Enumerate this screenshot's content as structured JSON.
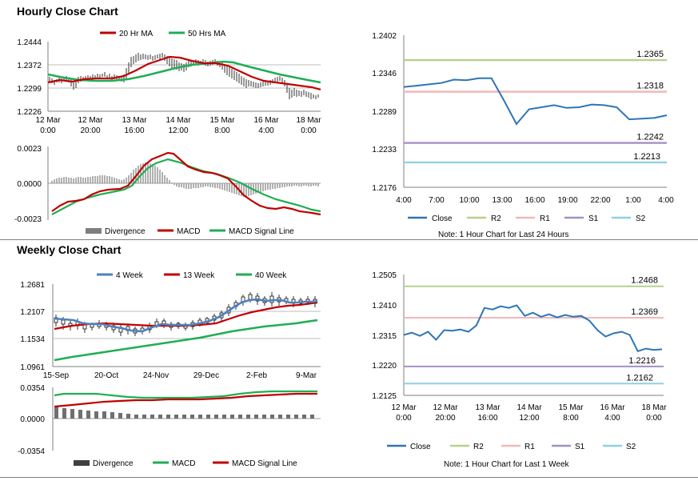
{
  "hourly": {
    "title": "Hourly Close Chart",
    "price_chart": {
      "legend": [
        "20 Hr MA",
        "50 Hrs MA"
      ],
      "y_ticks": [
        "1.2444",
        "1.2372",
        "1.2299",
        "1.2226"
      ],
      "x_ticks": [
        [
          "12 Mar",
          "0:00"
        ],
        [
          "12 Mar",
          "20:00"
        ],
        [
          "13 Mar",
          "16:00"
        ],
        [
          "14 Mar",
          "12:00"
        ],
        [
          "15 Mar",
          "8:00"
        ],
        [
          "16 Mar",
          "4:00"
        ],
        [
          "18 Mar",
          "0:00"
        ]
      ]
    },
    "macd_chart": {
      "y_ticks": [
        "0.0023",
        "0.0000",
        "-0.0023"
      ],
      "legend": [
        "Divergence",
        "MACD",
        "MACD Signal Line"
      ]
    },
    "levels_chart": {
      "chart_data": {
        "type": "line",
        "ylim": [
          1.2176,
          1.2402
        ],
        "y_ticks": [
          "1.2402",
          "1.2346",
          "1.2289",
          "1.2233",
          "1.2176"
        ],
        "x_ticks": [
          "4:00",
          "7:00",
          "10:00",
          "13:00",
          "16:00",
          "19:00",
          "22:00",
          "1:00",
          "4:00"
        ],
        "close": [
          1.2325,
          1.2327,
          1.2329,
          1.2331,
          1.2336,
          1.2335,
          1.2338,
          1.2338,
          1.2305,
          1.227,
          1.2292,
          1.2295,
          1.2298,
          1.2294,
          1.2295,
          1.2299,
          1.2298,
          1.2295,
          1.2277,
          1.2278,
          1.2279,
          1.2283
        ],
        "levels": {
          "R2": 1.2365,
          "R1": 1.2318,
          "S1": 1.2242,
          "S2": 1.2213
        },
        "level_labels": [
          "1.2365",
          "1.2318",
          "1.2242",
          "1.2213"
        ]
      },
      "legend": [
        "Close",
        "R2",
        "R1",
        "S1",
        "S2"
      ],
      "note": "Note: 1 Hour Chart for Last 24 Hours"
    }
  },
  "weekly": {
    "title": "Weekly Close Chart",
    "price_chart": {
      "legend": [
        "4 Week",
        "13 Week",
        "40 Week"
      ],
      "y_ticks": [
        "1.2681",
        "1.2107",
        "1.1534",
        "1.0961"
      ],
      "x_ticks": [
        "15-Sep",
        "20-Oct",
        "24-Nov",
        "29-Dec",
        "2-Feb",
        "9-Mar"
      ]
    },
    "macd_chart": {
      "y_ticks": [
        "0.0354",
        "0.0000",
        "-0.0354"
      ],
      "legend": [
        "Divergence",
        "MACD",
        "MACD Signal Line"
      ]
    },
    "levels_chart": {
      "chart_data": {
        "type": "line",
        "ylim": [
          1.2125,
          1.2505
        ],
        "y_ticks": [
          "1.2505",
          "1.2410",
          "1.2315",
          "1.2220",
          "1.2125"
        ],
        "x_ticks": [
          [
            "12 Mar",
            "0:00"
          ],
          [
            "12 Mar",
            "20:00"
          ],
          [
            "13 Mar",
            "16:00"
          ],
          [
            "14 Mar",
            "12:00"
          ],
          [
            "15 Mar",
            "8:00"
          ],
          [
            "16 Mar",
            "4:00"
          ],
          [
            "18 Mar",
            "0:00"
          ]
        ],
        "close": [
          1.2315,
          1.2322,
          1.2312,
          1.2325,
          1.23,
          1.233,
          1.2328,
          1.2332,
          1.2325,
          1.2345,
          1.24,
          1.2395,
          1.2405,
          1.24,
          1.2408,
          1.2375,
          1.2385,
          1.2372,
          1.238,
          1.237,
          1.2378,
          1.2372,
          1.2375,
          1.236,
          1.233,
          1.231,
          1.232,
          1.2325,
          1.2315,
          1.2264,
          1.2272,
          1.2268,
          1.227
        ],
        "levels": {
          "R2": 1.2468,
          "R1": 1.2369,
          "S1": 1.2216,
          "S2": 1.2162
        },
        "level_labels": [
          "1.2468",
          "1.2369",
          "1.2216",
          "1.2162"
        ]
      },
      "legend": [
        "Close",
        "R2",
        "R1",
        "S1",
        "S2"
      ],
      "note": "Note: 1 Hour Chart for Last 1 Week"
    }
  },
  "colors": {
    "red": "#C00000",
    "green": "#1FAE55",
    "blue": "#2E75B6",
    "steel": "#4F81BD",
    "r2": "#B5D18E",
    "r1": "#F2B8B8",
    "s1": "#A390C2",
    "s2": "#8FD0E4",
    "grid": "#7F7F7F",
    "div": "#7F7F7F"
  }
}
